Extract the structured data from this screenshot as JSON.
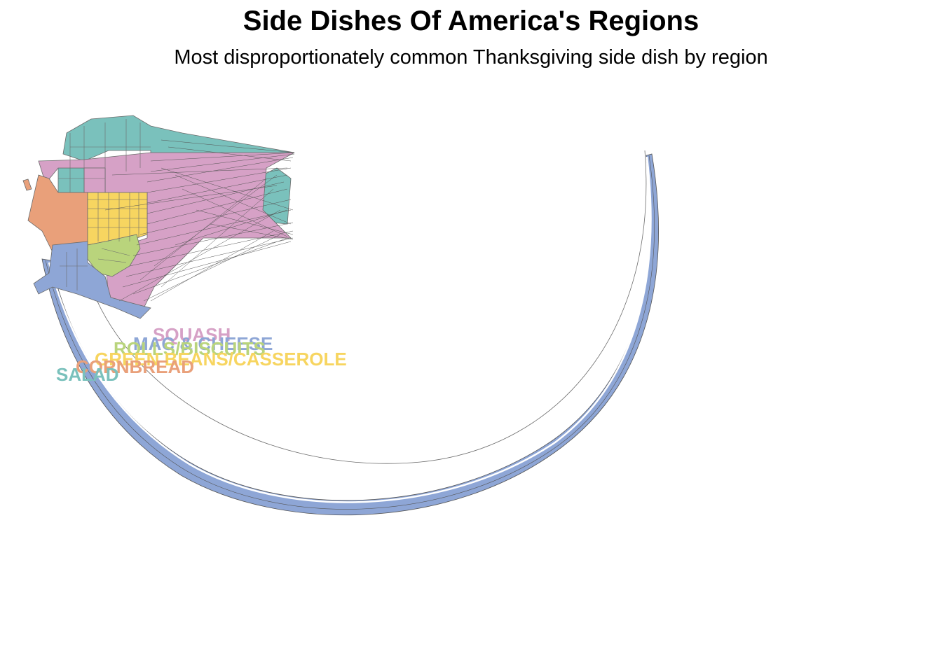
{
  "title": "Side Dishes Of America's Regions",
  "subtitle": "Most disproportionately common Thanksgiving side dish by region",
  "legend_labels": [
    {
      "id": "squash",
      "text": "SQUASH",
      "color": "#d6a1c6"
    },
    {
      "id": "mac",
      "text": "MAC & CHEESE",
      "color": "#8ea6d6"
    },
    {
      "id": "rolls",
      "text": "ROLLS/BISCUITS",
      "color": "#b9d47c"
    },
    {
      "id": "green",
      "text": "GREEN BEANS/CASSEROLE",
      "color": "#f7d560"
    },
    {
      "id": "cornbread",
      "text": "CORNBREAD",
      "color": "#e9a07a"
    },
    {
      "id": "salad",
      "text": "SALAD",
      "color": "#7ac1bc"
    }
  ],
  "region_colors": {
    "salad": "#7ac1bc",
    "squash": "#d6a1c6",
    "cornbread": "#e9a07a",
    "green_beans": "#f7d560",
    "rolls": "#b9d47c",
    "mac_cheese": "#8ea6d6"
  },
  "border_color": "#6b6b6b"
}
